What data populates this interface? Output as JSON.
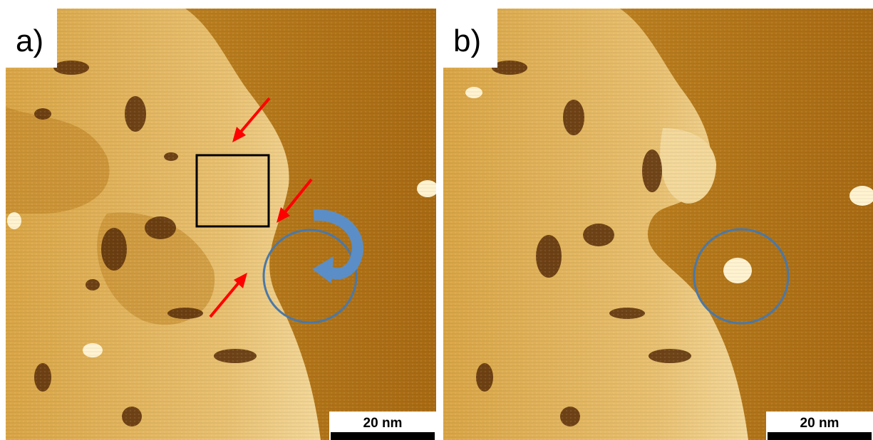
{
  "panels": [
    {
      "label": "a)",
      "scale_bar": "20 nm"
    },
    {
      "label": "b)",
      "scale_bar": "20 nm"
    }
  ]
}
